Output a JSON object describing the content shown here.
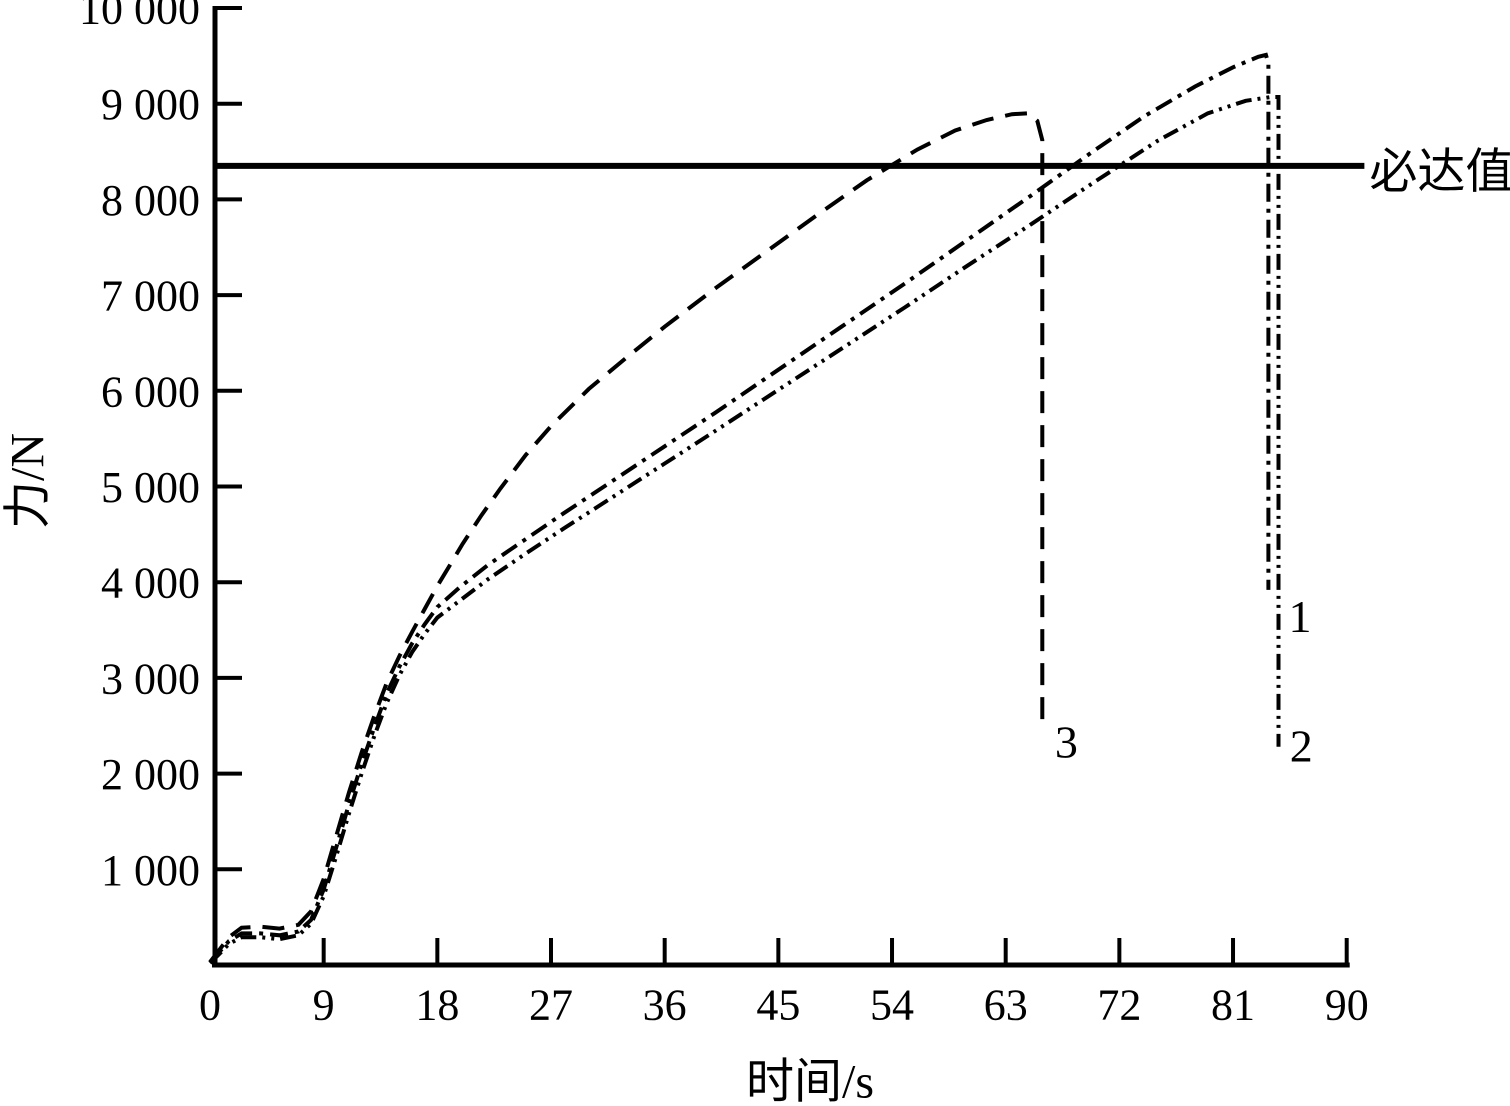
{
  "page": {
    "background_color": "#ffffff",
    "ink_color": "#000000"
  },
  "chart_data": {
    "type": "line",
    "title": "",
    "xlabel": "时间/s",
    "ylabel": "力/N",
    "xlim": [
      0,
      90
    ],
    "ylim": [
      0,
      10000
    ],
    "grid": false,
    "legend_position": "none",
    "x_ticks": {
      "values": [
        0,
        9,
        18,
        27,
        36,
        45,
        54,
        63,
        72,
        81,
        90
      ],
      "labels": [
        "0",
        "9",
        "18",
        "27",
        "36",
        "45",
        "54",
        "63",
        "72",
        "81",
        "90"
      ]
    },
    "y_ticks": {
      "values": [
        1000,
        2000,
        3000,
        4000,
        5000,
        6000,
        7000,
        8000,
        9000,
        10000
      ],
      "labels": [
        "1 000",
        "2 000",
        "3 000",
        "4 000",
        "5 000",
        "6 000",
        "7 000",
        "8 000",
        "9 000",
        "10 000"
      ]
    },
    "threshold": {
      "value": 8350,
      "label": "必达值",
      "x_start": 0.4,
      "x_end": 91.4,
      "label_x": 91.8
    },
    "series": [
      {
        "name": "curve-3",
        "label": "3",
        "style": "dashed",
        "label_at": [
          67.8,
          2330
        ],
        "peak": [
          64.8,
          8900
        ],
        "points": [
          [
            0,
            30
          ],
          [
            0.7,
            150
          ],
          [
            1.5,
            290
          ],
          [
            2.5,
            390
          ],
          [
            4,
            400
          ],
          [
            5.5,
            380
          ],
          [
            7,
            420
          ],
          [
            8,
            560
          ],
          [
            9,
            900
          ],
          [
            10,
            1350
          ],
          [
            11,
            1800
          ],
          [
            12,
            2220
          ],
          [
            13,
            2600
          ],
          [
            14,
            2950
          ],
          [
            15,
            3230
          ],
          [
            16,
            3480
          ],
          [
            17,
            3720
          ],
          [
            18,
            3960
          ],
          [
            19,
            4180
          ],
          [
            20,
            4400
          ],
          [
            21.5,
            4700
          ],
          [
            23,
            4980
          ],
          [
            25,
            5330
          ],
          [
            27,
            5630
          ],
          [
            30,
            6020
          ],
          [
            33,
            6350
          ],
          [
            36,
            6670
          ],
          [
            40,
            7070
          ],
          [
            44,
            7450
          ],
          [
            48,
            7830
          ],
          [
            52,
            8200
          ],
          [
            56,
            8520
          ],
          [
            59,
            8720
          ],
          [
            61.5,
            8830
          ],
          [
            63.5,
            8890
          ],
          [
            64.8,
            8900
          ],
          [
            65.5,
            8820
          ],
          [
            65.9,
            8620
          ],
          [
            65.9,
            2540
          ]
        ]
      },
      {
        "name": "curve-1",
        "label": "1",
        "style": "dash-dot",
        "label_at": [
          86.3,
          3640
        ],
        "peak": [
          83.6,
          9510
        ],
        "points": [
          [
            0,
            25
          ],
          [
            0.7,
            130
          ],
          [
            1.5,
            250
          ],
          [
            2.5,
            330
          ],
          [
            4,
            330
          ],
          [
            5.5,
            310
          ],
          [
            7,
            350
          ],
          [
            8,
            470
          ],
          [
            9,
            790
          ],
          [
            10,
            1230
          ],
          [
            11,
            1680
          ],
          [
            12,
            2100
          ],
          [
            13,
            2480
          ],
          [
            14,
            2840
          ],
          [
            15,
            3120
          ],
          [
            16,
            3360
          ],
          [
            17,
            3560
          ],
          [
            18,
            3740
          ],
          [
            19.8,
            3950
          ],
          [
            22,
            4180
          ],
          [
            25,
            4450
          ],
          [
            28,
            4720
          ],
          [
            32,
            5070
          ],
          [
            36,
            5420
          ],
          [
            40,
            5770
          ],
          [
            45,
            6220
          ],
          [
            50,
            6670
          ],
          [
            55,
            7120
          ],
          [
            60,
            7580
          ],
          [
            65,
            8040
          ],
          [
            70,
            8510
          ],
          [
            74,
            8870
          ],
          [
            78,
            9180
          ],
          [
            81,
            9380
          ],
          [
            83,
            9490
          ],
          [
            83.6,
            9510
          ],
          [
            83.8,
            9420
          ],
          [
            83.8,
            3920
          ]
        ]
      },
      {
        "name": "curve-2",
        "label": "2",
        "style": "dash-dot-dot",
        "label_at": [
          86.4,
          2290
        ],
        "peak": [
          84.5,
          9070
        ],
        "points": [
          [
            0,
            20
          ],
          [
            0.7,
            110
          ],
          [
            1.5,
            220
          ],
          [
            2.5,
            290
          ],
          [
            4,
            290
          ],
          [
            5.5,
            270
          ],
          [
            7,
            310
          ],
          [
            8,
            430
          ],
          [
            9,
            720
          ],
          [
            10,
            1140
          ],
          [
            11,
            1580
          ],
          [
            12,
            2000
          ],
          [
            13,
            2390
          ],
          [
            14,
            2740
          ],
          [
            15,
            3030
          ],
          [
            16,
            3270
          ],
          [
            17,
            3460
          ],
          [
            18,
            3630
          ],
          [
            20,
            3830
          ],
          [
            22,
            4030
          ],
          [
            25,
            4300
          ],
          [
            28,
            4560
          ],
          [
            32,
            4900
          ],
          [
            36,
            5240
          ],
          [
            40,
            5580
          ],
          [
            45,
            6010
          ],
          [
            50,
            6440
          ],
          [
            55,
            6870
          ],
          [
            60,
            7310
          ],
          [
            65,
            7740
          ],
          [
            70,
            8180
          ],
          [
            75,
            8610
          ],
          [
            79,
            8900
          ],
          [
            82,
            9030
          ],
          [
            84,
            9070
          ],
          [
            84.6,
            9070
          ],
          [
            84.6,
            2280
          ]
        ]
      }
    ]
  }
}
